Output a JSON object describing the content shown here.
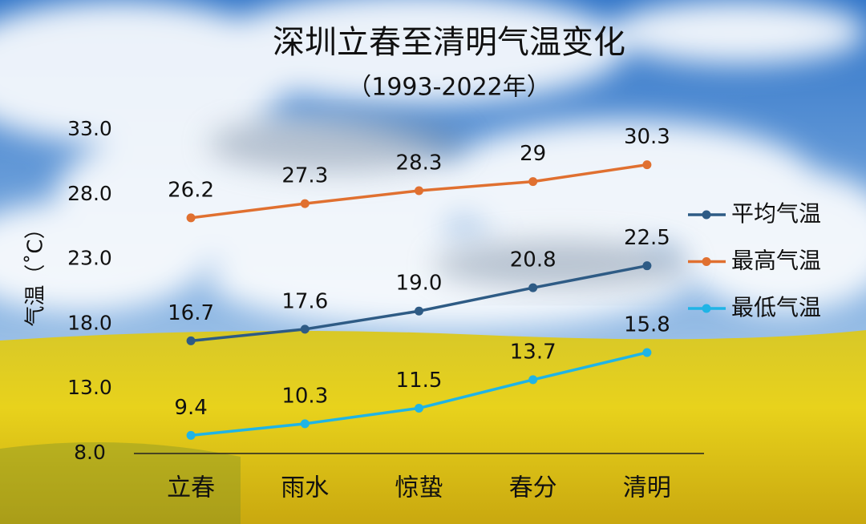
{
  "chart_data": {
    "type": "line",
    "title": "深圳立春至清明气温变化",
    "subtitle": "（1993-2022年）",
    "y_label": "气温（˚C）",
    "categories": [
      "立春",
      "雨水",
      "惊蛰",
      "春分",
      "清明"
    ],
    "series": [
      {
        "name": "平均气温",
        "color": "#2e5b85",
        "values": [
          16.7,
          17.6,
          19.0,
          20.8,
          22.5
        ],
        "value_labels": [
          "16.7",
          "17.6",
          "19.0",
          "20.8",
          "22.5"
        ]
      },
      {
        "name": "最高气温",
        "color": "#e07030",
        "values": [
          26.2,
          27.3,
          28.3,
          29,
          30.3
        ],
        "value_labels": [
          "26.2",
          "27.3",
          "28.3",
          "29",
          "30.3"
        ]
      },
      {
        "name": "最低气温",
        "color": "#1fb4e6",
        "values": [
          9.4,
          10.3,
          11.5,
          13.7,
          15.8
        ],
        "value_labels": [
          "9.4",
          "10.3",
          "11.5",
          "13.7",
          "15.8"
        ]
      }
    ],
    "ylim": [
      8,
      33
    ],
    "yticks": [
      {
        "value": 8,
        "label": "8.0"
      },
      {
        "value": 13,
        "label": "13.0"
      },
      {
        "value": 18,
        "label": "18.0"
      },
      {
        "value": 23,
        "label": "23.0"
      },
      {
        "value": 28,
        "label": "28.0"
      },
      {
        "value": 33,
        "label": "33.0"
      }
    ],
    "legend": "right"
  }
}
